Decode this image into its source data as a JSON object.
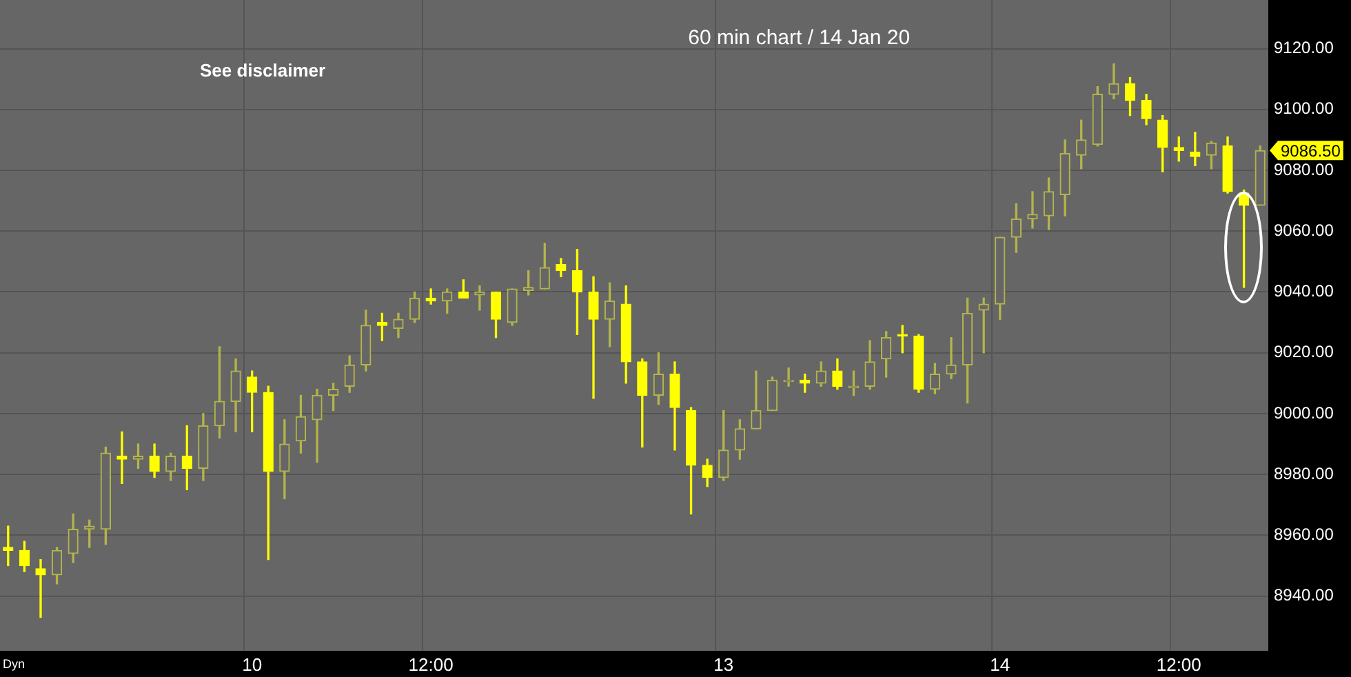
{
  "chart_data": {
    "type": "candlestick",
    "title": "60 min chart / 14 Jan 20",
    "annotations": [
      "See disclaimer",
      "Dyn",
      "9086.50"
    ],
    "categories": [
      null,
      null,
      null,
      null,
      null,
      null,
      null,
      null,
      null,
      null,
      null,
      null,
      null,
      null,
      null,
      "10",
      null,
      null,
      null,
      null,
      null,
      null,
      null,
      null,
      null,
      null,
      "12:00",
      null,
      null,
      null,
      null,
      null,
      null,
      null,
      null,
      null,
      null,
      null,
      null,
      null,
      null,
      null,
      null,
      null,
      "13",
      null,
      null,
      null,
      null,
      null,
      null,
      null,
      null,
      null,
      null,
      null,
      null,
      null,
      null,
      null,
      null,
      "14",
      null,
      null,
      null,
      null,
      null,
      null,
      null,
      null,
      null,
      null,
      "12:00",
      null,
      null,
      null,
      null,
      null
    ],
    "colors": [
      "#ffff00",
      "#ffff00",
      "#ffff00",
      "#b4b44c",
      "#b4b44c",
      "#b4b44c",
      "#b4b44c",
      "#ffff00",
      "#b4b44c",
      "#ffff00",
      "#b4b44c",
      "#ffff00",
      "#b4b44c",
      "#b4b44c",
      "#b4b44c",
      "#ffff00",
      "#ffff00",
      "#b4b44c",
      "#b4b44c",
      "#b4b44c",
      "#b4b44c",
      "#b4b44c",
      "#b4b44c",
      "#ffff00",
      "#b4b44c",
      "#b4b44c",
      "#ffff00",
      "#b4b44c",
      "#ffff00",
      "#b4b44c",
      "#ffff00",
      "#b4b44c",
      "#b4b44c",
      "#b4b44c",
      "#ffff00",
      "#ffff00",
      "#ffff00",
      "#b4b44c",
      "#ffff00",
      "#ffff00",
      "#b4b44c",
      "#ffff00",
      "#ffff00",
      "#ffff00",
      "#b4b44c",
      "#b4b44c",
      "#b4b44c",
      "#b4b44c",
      "#b4b44c",
      "#ffff00",
      "#b4b44c",
      "#ffff00",
      "#b4b44c",
      "#b4b44c",
      "#b4b44c",
      "#ffff00",
      "#ffff00",
      "#b4b44c",
      "#b4b44c",
      "#b4b44c",
      "#b4b44c",
      "#b4b44c",
      "#b4b44c",
      "#b4b44c",
      "#b4b44c",
      "#b4b44c",
      "#b4b44c",
      "#b4b44c",
      "#b4b44c",
      "#ffff00",
      "#ffff00",
      "#ffff00",
      "#ffff00",
      "#ffff00",
      "#b4b44c",
      "#ffff00",
      "#ffff00",
      "#b4b44c"
    ],
    "ohlc": [
      [
        8956,
        8963,
        8950,
        8955
      ],
      [
        8955,
        8958,
        8948,
        8950
      ],
      [
        8949,
        8952,
        8933,
        8947
      ],
      [
        8947,
        8956,
        8944,
        8955
      ],
      [
        8954,
        8967,
        8951,
        8962
      ],
      [
        8962,
        8965,
        8956,
        8963
      ],
      [
        8962,
        8989,
        8957,
        8987
      ],
      [
        8986,
        8994,
        8977,
        8985
      ],
      [
        8985,
        8990,
        8982,
        8986
      ],
      [
        8986,
        8990,
        8979,
        8981
      ],
      [
        8981,
        8987,
        8978,
        8986
      ],
      [
        8986,
        8996,
        8975,
        8982
      ],
      [
        8982,
        9000,
        8978,
        8996
      ],
      [
        8996,
        9022,
        8992,
        9004
      ],
      [
        9004,
        9018,
        8994,
        9014
      ],
      [
        9012,
        9014,
        8994,
        9007
      ],
      [
        9007,
        9009,
        8952,
        8981
      ],
      [
        8981,
        8998,
        8972,
        8990
      ],
      [
        8991,
        9006,
        8987,
        8999
      ],
      [
        8998,
        9008,
        8984,
        9006
      ],
      [
        9006,
        9010,
        9001,
        9008
      ],
      [
        9009,
        9019,
        9007,
        9016
      ],
      [
        9016,
        9034,
        9014,
        9029
      ],
      [
        9030,
        9033,
        9024,
        9029
      ],
      [
        9028,
        9033,
        9025,
        9031
      ],
      [
        9031,
        9040,
        9030,
        9038
      ],
      [
        9038,
        9041,
        9036,
        9037
      ],
      [
        9037,
        9041,
        9033,
        9040
      ],
      [
        9040,
        9044,
        9038,
        9038
      ],
      [
        9039,
        9042,
        9034,
        9040
      ],
      [
        9040,
        9040,
        9025,
        9031
      ],
      [
        9030,
        9041,
        9029,
        9041
      ],
      [
        9040.5,
        9047,
        9039,
        9041.5
      ],
      [
        9041,
        9056,
        9041,
        9048
      ],
      [
        9049,
        9051,
        9045,
        9047
      ],
      [
        9047,
        9054,
        9026,
        9040
      ],
      [
        9040,
        9045,
        9005,
        9031
      ],
      [
        9031,
        9043,
        9022,
        9037
      ],
      [
        9036,
        9042,
        9010,
        9017
      ],
      [
        9017,
        9018,
        8989,
        9006
      ],
      [
        9006,
        9020,
        9003,
        9013
      ],
      [
        9013,
        9017,
        8988,
        9002
      ],
      [
        9001,
        9002,
        8967,
        8983
      ],
      [
        8983,
        8985,
        8976,
        8979
      ],
      [
        8979,
        9001,
        8978,
        8988
      ],
      [
        8988,
        8998,
        8985,
        8995
      ],
      [
        8995,
        9014,
        8995,
        9001
      ],
      [
        9001,
        9012,
        9001,
        9011
      ],
      [
        9010.5,
        9015,
        9009,
        9011
      ],
      [
        9011,
        9013,
        9007,
        9010
      ],
      [
        9010,
        9017,
        9009,
        9014
      ],
      [
        9014,
        9018,
        9008,
        9009
      ],
      [
        9008.5,
        9014,
        9006,
        9009
      ],
      [
        9009,
        9024,
        9008,
        9017
      ],
      [
        9018,
        9027,
        9012,
        9025
      ],
      [
        9026,
        9029,
        9020,
        9025.5
      ],
      [
        9025.5,
        9026,
        9007,
        9008
      ],
      [
        9008,
        9016.5,
        9006.5,
        9013
      ],
      [
        9013,
        9025,
        9011.5,
        9016
      ],
      [
        9016,
        9038,
        9003.5,
        9033
      ],
      [
        9034,
        9038,
        9020,
        9036
      ],
      [
        9036,
        9058,
        9031,
        9058
      ],
      [
        9058,
        9069,
        9053,
        9064
      ],
      [
        9064,
        9073,
        9061,
        9065.5
      ],
      [
        9065,
        9077.5,
        9060.5,
        9073
      ],
      [
        9072,
        9090,
        9065,
        9085.5
      ],
      [
        9085,
        9096.5,
        9080.5,
        9090
      ],
      [
        9088.5,
        9107.5,
        9088,
        9105
      ],
      [
        9105,
        9115,
        9103.5,
        9108.5
      ],
      [
        9108.5,
        9110.5,
        9098,
        9103
      ],
      [
        9103,
        9105,
        9095,
        9097
      ],
      [
        9096.5,
        9098,
        9079.5,
        9087.5
      ],
      [
        9087.5,
        9091,
        9083,
        9086.5
      ],
      [
        9086,
        9092.5,
        9081.5,
        9084.5
      ],
      [
        9085,
        9089.5,
        9080.5,
        9089
      ],
      [
        9088,
        9091,
        9072.5,
        9073
      ],
      [
        9072.5,
        9073.5,
        9041.5,
        9068.5
      ],
      [
        9068.5,
        9088,
        9068.5,
        9086.5
      ]
    ],
    "ylim": [
      8922,
      9136
    ],
    "yticks": [
      {
        "value": 8940,
        "label": "8940.00"
      },
      {
        "value": 8960,
        "label": "8960.00"
      },
      {
        "value": 8980,
        "label": "8980.00"
      },
      {
        "value": 9000,
        "label": "9000.00"
      },
      {
        "value": 9020,
        "label": "9020.00"
      },
      {
        "value": 9040,
        "label": "9040.00"
      },
      {
        "value": 9060,
        "label": "9060.00"
      },
      {
        "value": 9080,
        "label": "9080.00"
      },
      {
        "value": 9100,
        "label": "9100.00"
      },
      {
        "value": 9120,
        "label": "9120.00"
      }
    ],
    "grid": true,
    "legend": false
  }
}
